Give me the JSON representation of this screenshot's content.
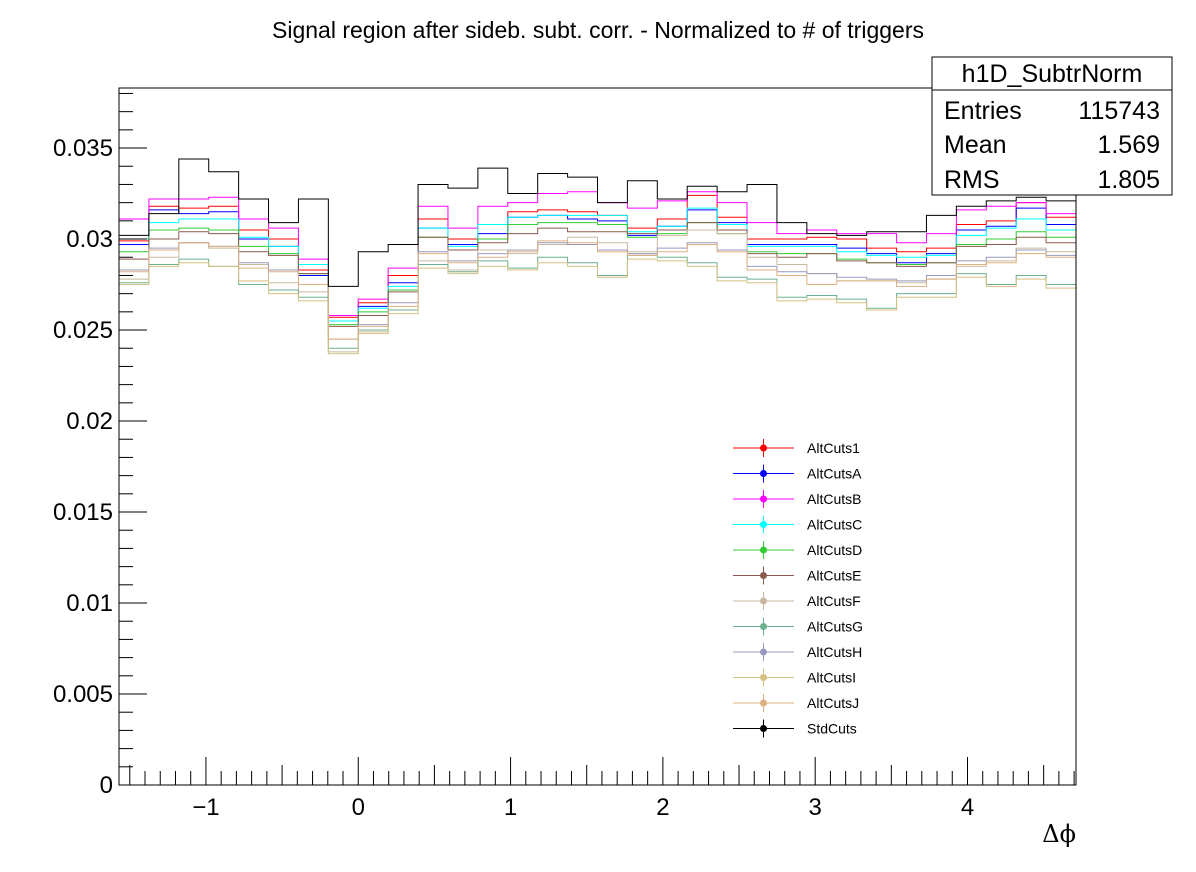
{
  "chart_data": {
    "type": "line",
    "title": "Signal region after sideb. subt. corr. - Normalized to # of triggers",
    "xlabel": "Δϕ",
    "ylabel": "",
    "xlim": [
      -1.5708,
      4.7124
    ],
    "ylim": [
      0,
      0.0383
    ],
    "x_ticks": [
      -1,
      0,
      1,
      2,
      3,
      4
    ],
    "x_tick_labels": [
      "−1",
      "0",
      "1",
      "2",
      "3",
      "4"
    ],
    "y_ticks": [
      0,
      0.005,
      0.01,
      0.015,
      0.02,
      0.025,
      0.03,
      0.035
    ],
    "y_tick_labels": [
      "0",
      "0.005",
      "0.01",
      "0.015",
      "0.02",
      "0.025",
      "0.03",
      "0.035"
    ],
    "grid": false,
    "legend_position": "bottom-right",
    "n_bins": 32,
    "stats_box": {
      "title": "h1D_SubtrNorm",
      "rows": [
        {
          "label": "Entries",
          "value": "115743"
        },
        {
          "label": "Mean",
          "value": "1.569"
        },
        {
          "label": "RMS",
          "value": "1.805"
        }
      ]
    },
    "series": [
      {
        "name": "AltCuts1",
        "color": "#ff0000",
        "values": [
          0.0299,
          0.0318,
          0.0317,
          0.0318,
          0.0305,
          0.03,
          0.0283,
          0.0257,
          0.0265,
          0.028,
          0.0311,
          0.03,
          0.0308,
          0.0315,
          0.0316,
          0.0315,
          0.0313,
          0.0306,
          0.0311,
          0.0324,
          0.0312,
          0.03,
          0.03,
          0.0301,
          0.03,
          0.0295,
          0.0293,
          0.0295,
          0.0308,
          0.031,
          0.032,
          0.0312
        ]
      },
      {
        "name": "AltCutsA",
        "color": "#0000ff",
        "values": [
          0.0297,
          0.0316,
          0.0314,
          0.0315,
          0.03,
          0.0296,
          0.028,
          0.0255,
          0.0263,
          0.0276,
          0.0306,
          0.0297,
          0.0303,
          0.0312,
          0.0313,
          0.0311,
          0.031,
          0.0302,
          0.0307,
          0.0316,
          0.0309,
          0.0297,
          0.0297,
          0.0297,
          0.0295,
          0.0292,
          0.0287,
          0.0292,
          0.0305,
          0.0307,
          0.0317,
          0.0308
        ]
      },
      {
        "name": "AltCutsB",
        "color": "#ff00ff",
        "values": [
          0.0311,
          0.0322,
          0.0322,
          0.0323,
          0.0311,
          0.0306,
          0.0289,
          0.0258,
          0.0267,
          0.0284,
          0.0318,
          0.0306,
          0.0318,
          0.032,
          0.0325,
          0.0326,
          0.032,
          0.0317,
          0.0321,
          0.0326,
          0.032,
          0.0309,
          0.0303,
          0.0305,
          0.0303,
          0.0303,
          0.0298,
          0.0303,
          0.0316,
          0.0318,
          0.032,
          0.0314
        ]
      },
      {
        "name": "AltCutsC",
        "color": "#00ffff",
        "values": [
          0.03,
          0.0309,
          0.0311,
          0.0311,
          0.0301,
          0.0296,
          0.0286,
          0.0255,
          0.0262,
          0.0274,
          0.0306,
          0.0296,
          0.0308,
          0.0312,
          0.0313,
          0.0313,
          0.0313,
          0.0304,
          0.0307,
          0.0317,
          0.0308,
          0.0296,
          0.0296,
          0.0296,
          0.0293,
          0.0291,
          0.029,
          0.0291,
          0.0302,
          0.0306,
          0.0311,
          0.0305
        ]
      },
      {
        "name": "AltCutsD",
        "color": "#33cc33",
        "values": [
          0.0293,
          0.0305,
          0.0306,
          0.0305,
          0.0296,
          0.0292,
          0.0281,
          0.0253,
          0.026,
          0.0272,
          0.0301,
          0.0294,
          0.03,
          0.0308,
          0.0309,
          0.0309,
          0.0308,
          0.0301,
          0.0303,
          0.0309,
          0.0303,
          0.0293,
          0.0292,
          0.0292,
          0.0289,
          0.0287,
          0.0286,
          0.0287,
          0.0297,
          0.03,
          0.0304,
          0.0301
        ]
      },
      {
        "name": "AltCutsE",
        "color": "#8b5a4c",
        "values": [
          0.0289,
          0.03,
          0.0304,
          0.0303,
          0.0293,
          0.0291,
          0.0281,
          0.0252,
          0.0258,
          0.0271,
          0.0301,
          0.0294,
          0.0298,
          0.0303,
          0.0306,
          0.0304,
          0.0304,
          0.0303,
          0.0305,
          0.0309,
          0.0305,
          0.0292,
          0.029,
          0.0292,
          0.0288,
          0.0287,
          0.0285,
          0.0287,
          0.0296,
          0.0297,
          0.0301,
          0.0298
        ]
      },
      {
        "name": "AltCutsF",
        "color": "#c8b8a0",
        "values": [
          0.0278,
          0.029,
          0.0298,
          0.0295,
          0.0286,
          0.0276,
          0.0271,
          0.0238,
          0.0249,
          0.0261,
          0.0288,
          0.0283,
          0.0294,
          0.0292,
          0.0297,
          0.0301,
          0.0298,
          0.0293,
          0.0302,
          0.0305,
          0.0303,
          0.029,
          0.0286,
          0.0281,
          0.0277,
          0.0277,
          0.0276,
          0.0278,
          0.0285,
          0.0288,
          0.0295,
          0.0293
        ]
      },
      {
        "name": "AltCutsG",
        "color": "#6aaf8e",
        "values": [
          0.0276,
          0.0286,
          0.0289,
          0.0285,
          0.0275,
          0.0272,
          0.0268,
          0.024,
          0.025,
          0.0261,
          0.0286,
          0.0282,
          0.0288,
          0.0284,
          0.029,
          0.0287,
          0.028,
          0.0291,
          0.029,
          0.0287,
          0.0279,
          0.0278,
          0.0268,
          0.0269,
          0.0267,
          0.0262,
          0.027,
          0.027,
          0.0281,
          0.0275,
          0.028,
          0.0275
        ]
      },
      {
        "name": "AltCutsH",
        "color": "#9999bb",
        "values": [
          0.0283,
          0.0295,
          0.0298,
          0.0296,
          0.0287,
          0.0283,
          0.0275,
          0.0245,
          0.0253,
          0.0265,
          0.0293,
          0.0288,
          0.0292,
          0.0294,
          0.0298,
          0.0297,
          0.0294,
          0.0292,
          0.0295,
          0.0298,
          0.0294,
          0.0285,
          0.0282,
          0.0281,
          0.0279,
          0.0278,
          0.0277,
          0.028,
          0.0288,
          0.029,
          0.0294,
          0.0291
        ]
      },
      {
        "name": "AltCutsI",
        "color": "#d4c080",
        "values": [
          0.0275,
          0.0285,
          0.0287,
          0.0285,
          0.0277,
          0.027,
          0.0266,
          0.0237,
          0.0248,
          0.0259,
          0.0284,
          0.0281,
          0.0285,
          0.0283,
          0.0287,
          0.0285,
          0.0279,
          0.0289,
          0.0288,
          0.0285,
          0.0277,
          0.0276,
          0.0266,
          0.0267,
          0.0265,
          0.0261,
          0.0268,
          0.0268,
          0.0279,
          0.0274,
          0.0278,
          0.0273
        ]
      },
      {
        "name": "AltCutsJ",
        "color": "#ddb080",
        "values": [
          0.0282,
          0.0294,
          0.0298,
          0.0296,
          0.0284,
          0.0282,
          0.0275,
          0.0245,
          0.0252,
          0.0263,
          0.0292,
          0.0287,
          0.029,
          0.0293,
          0.0299,
          0.0298,
          0.0293,
          0.0291,
          0.0293,
          0.0297,
          0.0293,
          0.0283,
          0.028,
          0.0275,
          0.0277,
          0.0277,
          0.0274,
          0.0278,
          0.0286,
          0.0287,
          0.0292,
          0.029
        ]
      },
      {
        "name": "StdCuts",
        "color": "#000000",
        "values": [
          0.0302,
          0.0314,
          0.0344,
          0.0337,
          0.0322,
          0.0309,
          0.0322,
          0.0274,
          0.0293,
          0.0297,
          0.033,
          0.0328,
          0.0339,
          0.0325,
          0.0336,
          0.0334,
          0.032,
          0.0332,
          0.0322,
          0.0329,
          0.0326,
          0.033,
          0.0309,
          0.0303,
          0.0302,
          0.0304,
          0.0304,
          0.0313,
          0.0318,
          0.0321,
          0.0323,
          0.0321
        ]
      }
    ]
  }
}
